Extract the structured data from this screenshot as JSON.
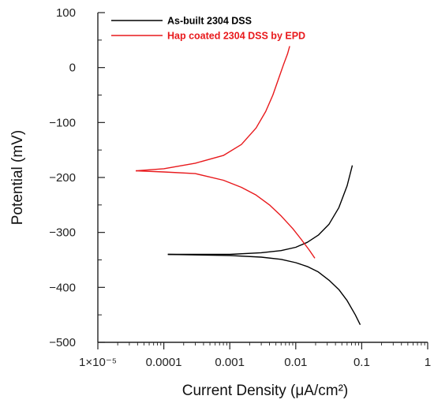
{
  "chart_data": {
    "type": "line",
    "xscale": "log",
    "xlim": [
      1e-05,
      1
    ],
    "ylim": [
      -500,
      100
    ],
    "xlabel": "Current Density (μA/cm²)",
    "ylabel": "Potential (mV)",
    "x_ticks": [
      {
        "value": 1e-05,
        "label": "1×10⁻⁵"
      },
      {
        "value": 0.0001,
        "label": "0.0001"
      },
      {
        "value": 0.001,
        "label": "0.001"
      },
      {
        "value": 0.01,
        "label": "0.01"
      },
      {
        "value": 0.1,
        "label": "0.1"
      },
      {
        "value": 1,
        "label": "1"
      }
    ],
    "y_ticks": [
      {
        "value": 100,
        "label": "100"
      },
      {
        "value": 0,
        "label": "0"
      },
      {
        "value": -100,
        "label": "−100"
      },
      {
        "value": -200,
        "label": "−200"
      },
      {
        "value": -300,
        "label": "−300"
      },
      {
        "value": -400,
        "label": "−400"
      },
      {
        "value": -500,
        "label": "−500"
      }
    ],
    "legend_position": "top-left",
    "series": [
      {
        "name": "As-built 2304 DSS",
        "color": "#000000",
        "branches": [
          {
            "x": [
              0.000115,
              0.0003,
              0.001,
              0.003,
              0.006,
              0.01,
              0.015,
              0.022,
              0.032,
              0.045,
              0.06,
              0.072
            ],
            "y": [
              -340,
              -340,
              -340,
              -337,
              -333,
              -327,
              -318,
              -305,
              -285,
              -255,
              -215,
              -178
            ]
          },
          {
            "x": [
              0.000115,
              0.0003,
              0.001,
              0.003,
              0.006,
              0.01,
              0.015,
              0.022,
              0.032,
              0.045,
              0.06,
              0.08,
              0.095
            ],
            "y": [
              -340,
              -341,
              -342,
              -345,
              -349,
              -355,
              -362,
              -372,
              -387,
              -404,
              -424,
              -450,
              -468
            ]
          }
        ]
      },
      {
        "name": "Hap coated 2304 DSS by EPD",
        "color": "#e8191c",
        "branches": [
          {
            "x": [
              3.75e-05,
              0.0001,
              0.0003,
              0.0008,
              0.0015,
              0.0025,
              0.0035,
              0.0045,
              0.0055,
              0.0065,
              0.0075,
              0.0081
            ],
            "y": [
              -188,
              -184,
              -174,
              -160,
              -140,
              -110,
              -80,
              -50,
              -20,
              5,
              25,
              39
            ]
          },
          {
            "x": [
              3.75e-05,
              0.0001,
              0.0003,
              0.0008,
              0.0015,
              0.0025,
              0.004,
              0.006,
              0.009,
              0.012,
              0.016,
              0.0195
            ],
            "y": [
              -188,
              -190,
              -193,
              -205,
              -218,
              -232,
              -250,
              -270,
              -293,
              -312,
              -332,
              -347
            ]
          }
        ]
      }
    ]
  }
}
